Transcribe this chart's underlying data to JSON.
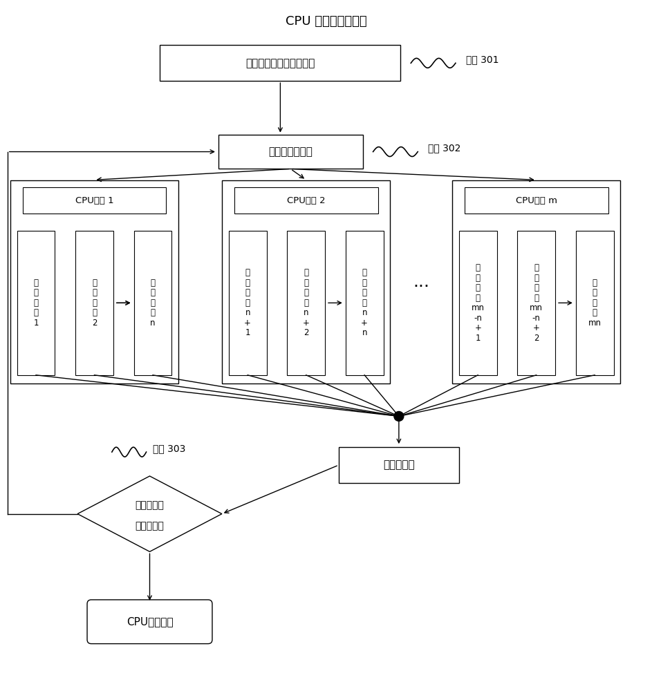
{
  "title": "CPU 端并行切片计算",
  "step301": "步骤 301",
  "step302": "步骤 302",
  "step303": "步骤 303",
  "box1_text": "生成切片对应地图的范围",
  "box2_text": "处理一个级别的",
  "cpu1_label": "CPU核心 1",
  "cpu2_label": "CPU核心 2",
  "cpu3_label": "CPU核心 m",
  "save_box_text": "保存为图片",
  "diamond_line1": "是否所有级",
  "diamond_line2": "别处理完毕",
  "end_box_text": "CPU切片完成",
  "dots": "..."
}
